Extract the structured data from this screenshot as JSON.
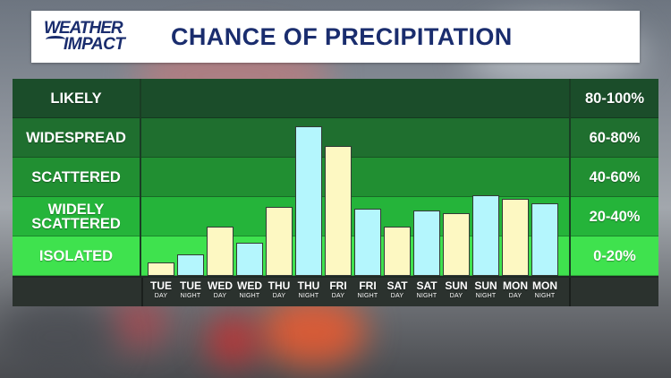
{
  "header": {
    "logo_line1": "WEATHER",
    "logo_line2": "IMPACT",
    "title": "CHANCE OF PRECIPITATION"
  },
  "colors": {
    "likely": "#1b4d2a",
    "widespread": "#1f6f2f",
    "scattered": "#218f32",
    "widely_scattered": "#25b43a",
    "isolated": "#3fe24e",
    "day_bar": "#fdf8c2",
    "night_bar": "#b4f6fd",
    "title_blue": "#1a2d6e"
  },
  "chart_data": {
    "type": "bar",
    "title": "CHANCE OF PRECIPITATION",
    "ylim": [
      0,
      100
    ],
    "bands": [
      {
        "label": "LIKELY",
        "range": "80-100%",
        "color": "#1b4d2a"
      },
      {
        "label": "WIDESPREAD",
        "range": "60-80%",
        "color": "#1f6f2f"
      },
      {
        "label": "SCATTERED",
        "range": "40-60%",
        "color": "#218f32"
      },
      {
        "label": "WIDELY SCATTERED",
        "range": "20-40%",
        "color": "#25b43a"
      },
      {
        "label": "ISOLATED",
        "range": "0-20%",
        "color": "#3fe24e"
      }
    ],
    "categories": [
      {
        "day": "TUE",
        "period": "DAY"
      },
      {
        "day": "TUE",
        "period": "NIGHT"
      },
      {
        "day": "WED",
        "period": "DAY"
      },
      {
        "day": "WED",
        "period": "NIGHT"
      },
      {
        "day": "THU",
        "period": "DAY"
      },
      {
        "day": "THU",
        "period": "NIGHT"
      },
      {
        "day": "FRI",
        "period": "DAY"
      },
      {
        "day": "FRI",
        "period": "NIGHT"
      },
      {
        "day": "SAT",
        "period": "DAY"
      },
      {
        "day": "SAT",
        "period": "NIGHT"
      },
      {
        "day": "SUN",
        "period": "DAY"
      },
      {
        "day": "SUN",
        "period": "NIGHT"
      },
      {
        "day": "MON",
        "period": "DAY"
      },
      {
        "day": "MON",
        "period": "NIGHT"
      }
    ],
    "values": [
      7,
      11,
      25,
      17,
      35,
      76,
      66,
      34,
      25,
      33,
      32,
      41,
      39,
      37
    ]
  }
}
